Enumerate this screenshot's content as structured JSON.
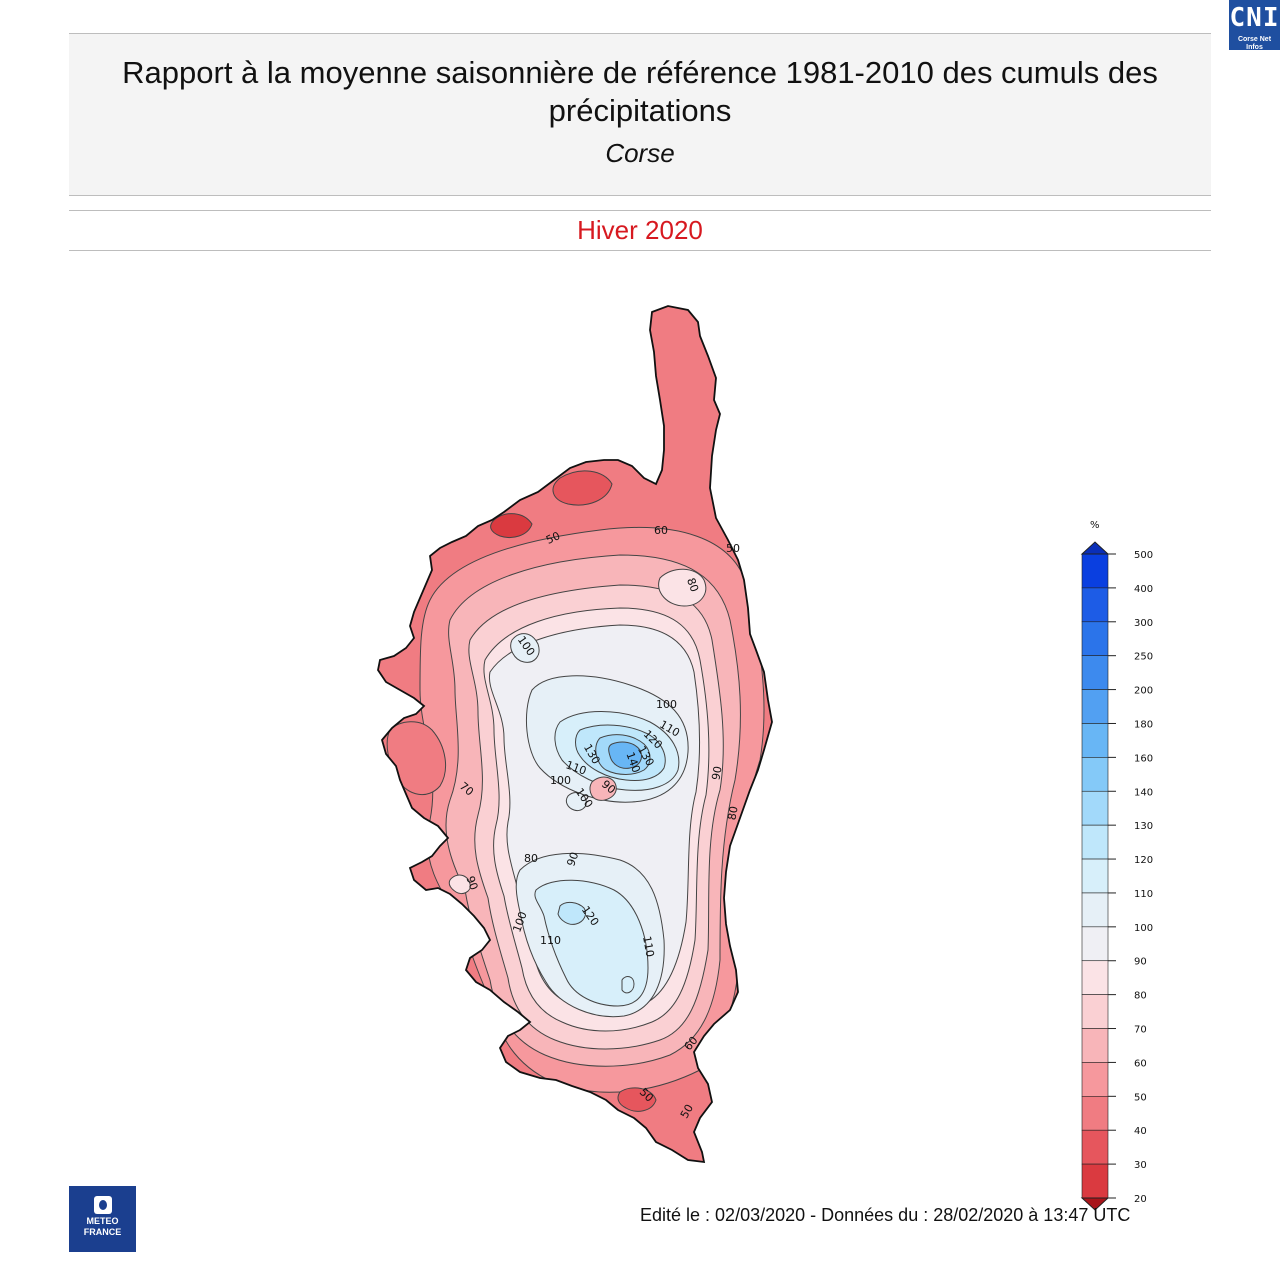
{
  "header": {
    "title": "Rapport à la moyenne saisonnière de référence 1981-2010 des cumuls des précipitations",
    "region": "Corse",
    "season": "Hiver 2020"
  },
  "badge": {
    "abbr": "CNI",
    "name": "Corse Net Infos"
  },
  "footer": {
    "edition": "Edité le : 02/03/2020 - Données du : 28/02/2020 à 13:47 UTC"
  },
  "logo": {
    "line1": "METEO",
    "line2": "FRANCE"
  },
  "legend": {
    "unit": "%",
    "ticks": [
      "500",
      "400",
      "300",
      "250",
      "200",
      "180",
      "160",
      "140",
      "130",
      "120",
      "110",
      "100",
      "90",
      "80",
      "70",
      "60",
      "50",
      "40",
      "30",
      "20"
    ],
    "band_colors": [
      "#0a3fe0",
      "#1d5ce6",
      "#2b74ea",
      "#3d8aee",
      "#52a0f2",
      "#68b6f5",
      "#84c9f8",
      "#a2d9fa",
      "#bfe7fb",
      "#d7effa",
      "#e6f0f7",
      "#efeff4",
      "#fbe3e6",
      "#fad0d3",
      "#f8b5b9",
      "#f6989d",
      "#f07c82",
      "#e6565d",
      "#da3a40",
      "#c81a20"
    ],
    "top_arrow_color": "#0a2fb8",
    "bottom_arrow_color": "#a8141a"
  },
  "map": {
    "contour_labels": [
      {
        "text": "60"
      },
      {
        "text": "50"
      },
      {
        "text": "50"
      },
      {
        "text": "80"
      },
      {
        "text": "100"
      },
      {
        "text": "100"
      },
      {
        "text": "110"
      },
      {
        "text": "120"
      },
      {
        "text": "130"
      },
      {
        "text": "140"
      },
      {
        "text": "130"
      },
      {
        "text": "110"
      },
      {
        "text": "100"
      },
      {
        "text": "90"
      },
      {
        "text": "100"
      },
      {
        "text": "90"
      },
      {
        "text": "80"
      },
      {
        "text": "70"
      },
      {
        "text": "90"
      },
      {
        "text": "80"
      },
      {
        "text": "90"
      },
      {
        "text": "100"
      },
      {
        "text": "120"
      },
      {
        "text": "110"
      },
      {
        "text": "110"
      },
      {
        "text": "60"
      },
      {
        "text": "50"
      },
      {
        "text": "50"
      }
    ]
  }
}
